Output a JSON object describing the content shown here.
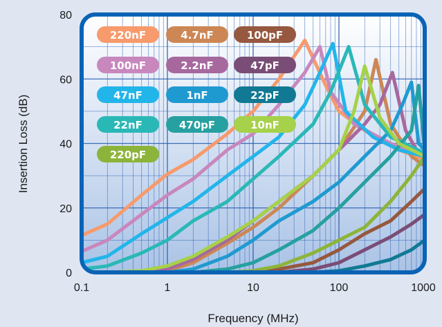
{
  "chart_data": {
    "type": "line",
    "xlabel": "Frequency (MHz)",
    "ylabel": "Insertion Loss (dB)",
    "xscale": "log",
    "xlim": [
      0.1,
      1000
    ],
    "ylim": [
      0,
      80
    ],
    "x_ticks": [
      "0.1",
      "1",
      "10",
      "100",
      "1000"
    ],
    "y_ticks": [
      "0",
      "20",
      "40",
      "60",
      "80"
    ],
    "grid": true,
    "legend_placement": "top-left",
    "colors": {
      "background": "#dfe6f2",
      "frame": "#0a63b5",
      "plot_area_top": "#ffffff",
      "plot_area_bottom": "#aac3e6",
      "grid": "#2a5fb0"
    },
    "series": [
      {
        "name": "220nF",
        "color": "#f79a6c",
        "x": [
          0.1,
          0.2,
          0.5,
          1,
          2,
          5,
          10,
          20,
          40,
          70,
          100,
          200,
          500,
          1000
        ],
        "y": [
          11.5,
          15,
          24,
          30.5,
          35,
          43,
          50,
          60,
          72,
          58,
          50,
          44,
          38,
          35
        ]
      },
      {
        "name": "4.7nF",
        "color": "#cc8755",
        "x": [
          0.2,
          0.5,
          1,
          2,
          5,
          10,
          20,
          50,
          100,
          200,
          270,
          400,
          700,
          1000
        ],
        "y": [
          0,
          0,
          0.5,
          3,
          9,
          14,
          20,
          30,
          38,
          50,
          66,
          46,
          36,
          33
        ]
      },
      {
        "name": "100pF",
        "color": "#96583f",
        "x": [
          10,
          20,
          50,
          100,
          200,
          400,
          700,
          1000
        ],
        "y": [
          0,
          1,
          3,
          7,
          12,
          16,
          22,
          26
        ]
      },
      {
        "name": "100nF",
        "color": "#c887bd",
        "x": [
          0.1,
          0.2,
          0.5,
          1,
          2,
          5,
          10,
          20,
          40,
          60,
          80,
          150,
          400,
          1000
        ],
        "y": [
          6.5,
          10,
          18,
          24,
          29,
          38,
          43,
          52,
          62,
          70,
          56,
          46,
          40,
          36
        ]
      },
      {
        "name": "2.2nF",
        "color": "#a7689e",
        "x": [
          0.5,
          1,
          2,
          5,
          10,
          20,
          50,
          100,
          200,
          300,
          420,
          600,
          800,
          1000
        ],
        "y": [
          0,
          1,
          4,
          10,
          16,
          22,
          30,
          38,
          46,
          52,
          62,
          44,
          38,
          37
        ]
      },
      {
        "name": "47pF",
        "color": "#7a4d76",
        "x": [
          20,
          50,
          100,
          200,
          400,
          700,
          1000
        ],
        "y": [
          0,
          1,
          3,
          7,
          11,
          15,
          18
        ]
      },
      {
        "name": "47nF",
        "color": "#22b5ea",
        "x": [
          0.1,
          0.2,
          0.5,
          1,
          2,
          5,
          10,
          20,
          40,
          60,
          85,
          120,
          250,
          500,
          1000
        ],
        "y": [
          3,
          5,
          12,
          17,
          22,
          30,
          36,
          42,
          52,
          62,
          71,
          50,
          42,
          38,
          36
        ]
      },
      {
        "name": "1nF",
        "color": "#1f9ad0",
        "x": [
          1,
          2,
          5,
          10,
          20,
          50,
          100,
          200,
          400,
          550,
          700,
          850,
          1000
        ],
        "y": [
          0,
          1,
          5,
          10,
          16,
          22,
          28,
          36,
          44,
          52,
          59,
          40,
          38
        ]
      },
      {
        "name": "22pF",
        "color": "#117993",
        "x": [
          50,
          100,
          200,
          400,
          700,
          1000
        ],
        "y": [
          0,
          0.5,
          2,
          4,
          7,
          10
        ]
      },
      {
        "name": "22nF",
        "color": "#2ab8b7",
        "x": [
          0.1,
          0.2,
          0.5,
          1,
          2,
          5,
          10,
          20,
          50,
          80,
          130,
          200,
          400,
          1000
        ],
        "y": [
          1,
          2,
          6,
          10,
          16,
          22,
          29,
          36,
          46,
          56,
          70,
          52,
          42,
          37
        ]
      },
      {
        "name": "470pF",
        "color": "#26a0a0",
        "x": [
          2,
          5,
          10,
          20,
          50,
          100,
          200,
          400,
          700,
          850,
          1000
        ],
        "y": [
          0,
          1,
          3,
          7,
          13,
          20,
          28,
          36,
          44,
          58,
          38
        ]
      },
      {
        "name": "10nF",
        "color": "#a6d14a",
        "x": [
          0.2,
          0.5,
          1,
          2,
          5,
          10,
          20,
          50,
          100,
          150,
          200,
          300,
          500,
          1000
        ],
        "y": [
          0,
          0.5,
          2,
          5,
          11,
          16,
          22,
          30,
          38,
          50,
          64,
          48,
          40,
          36
        ]
      },
      {
        "name": "220pF",
        "color": "#8db43a",
        "x": [
          5,
          10,
          20,
          50,
          100,
          200,
          400,
          700,
          1000
        ],
        "y": [
          0,
          0.5,
          2,
          6,
          10,
          14,
          22,
          30,
          36
        ]
      }
    ]
  }
}
